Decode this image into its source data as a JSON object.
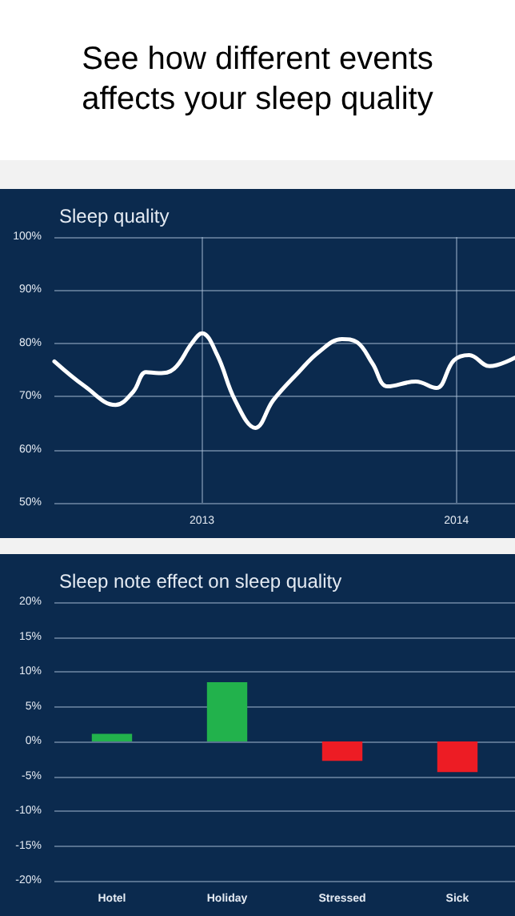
{
  "chart_data": [
    {
      "type": "other",
      "title": "See how different events affects your sleep quality"
    },
    {
      "type": "line",
      "title": "Sleep quality",
      "x": [
        2012.42,
        2012.54,
        2012.66,
        2012.73,
        2012.78,
        2012.83,
        2012.89,
        2012.96,
        2013.0,
        2013.06,
        2013.13,
        2013.21,
        2013.28,
        2013.38,
        2013.46,
        2013.55,
        2013.61,
        2013.67,
        2013.73,
        2013.84,
        2013.92,
        2013.99,
        2014.05,
        2014.13,
        2014.23
      ],
      "series": [
        {
          "color": "#ffffff",
          "values": [
            76.6,
            71.9,
            68.4,
            70.9,
            74.6,
            74.4,
            75.2,
            80,
            81.9,
            77.8,
            69.3,
            64.1,
            69.3,
            74.6,
            78.4,
            80.8,
            80.2,
            76.2,
            71.9,
            72.8,
            71.6,
            76.8,
            77.8,
            75.7,
            77.3
          ]
        }
      ],
      "xlim": [
        2012.42,
        2014.23
      ],
      "xticks": [
        2013,
        2014
      ],
      "ylim": [
        50,
        100
      ],
      "yticks": [
        {
          "value": 50,
          "label": "50%"
        },
        {
          "value": 60,
          "label": "60%"
        },
        {
          "value": 70,
          "label": "70%"
        },
        {
          "value": 80,
          "label": "80%"
        },
        {
          "value": 90,
          "label": "90%"
        },
        {
          "value": 100,
          "label": "100%"
        }
      ],
      "grid": true,
      "marker": "none",
      "line_style": "solid"
    },
    {
      "type": "bar",
      "title": "Sleep note effect on sleep quality",
      "categories": [
        "Hotel",
        "Holiday",
        "Stressed",
        "Sick"
      ],
      "values": [
        1.1,
        8.5,
        -2.8,
        -4.4
      ],
      "colors": [
        "#22b24c",
        "#22b24c",
        "#ed1c24",
        "#ed1c24"
      ],
      "ylim": [
        -20,
        20
      ],
      "yticks": [
        {
          "value": -20,
          "label": "-20%"
        },
        {
          "value": -15,
          "label": "-15%"
        },
        {
          "value": -10,
          "label": "-10%"
        },
        {
          "value": -5,
          "label": "-5%"
        },
        {
          "value": 0,
          "label": "0%"
        },
        {
          "value": 5,
          "label": "5%"
        },
        {
          "value": 10,
          "label": "10%"
        },
        {
          "value": 15,
          "label": "15%"
        },
        {
          "value": 20,
          "label": "20%"
        }
      ],
      "grid": "y"
    }
  ]
}
